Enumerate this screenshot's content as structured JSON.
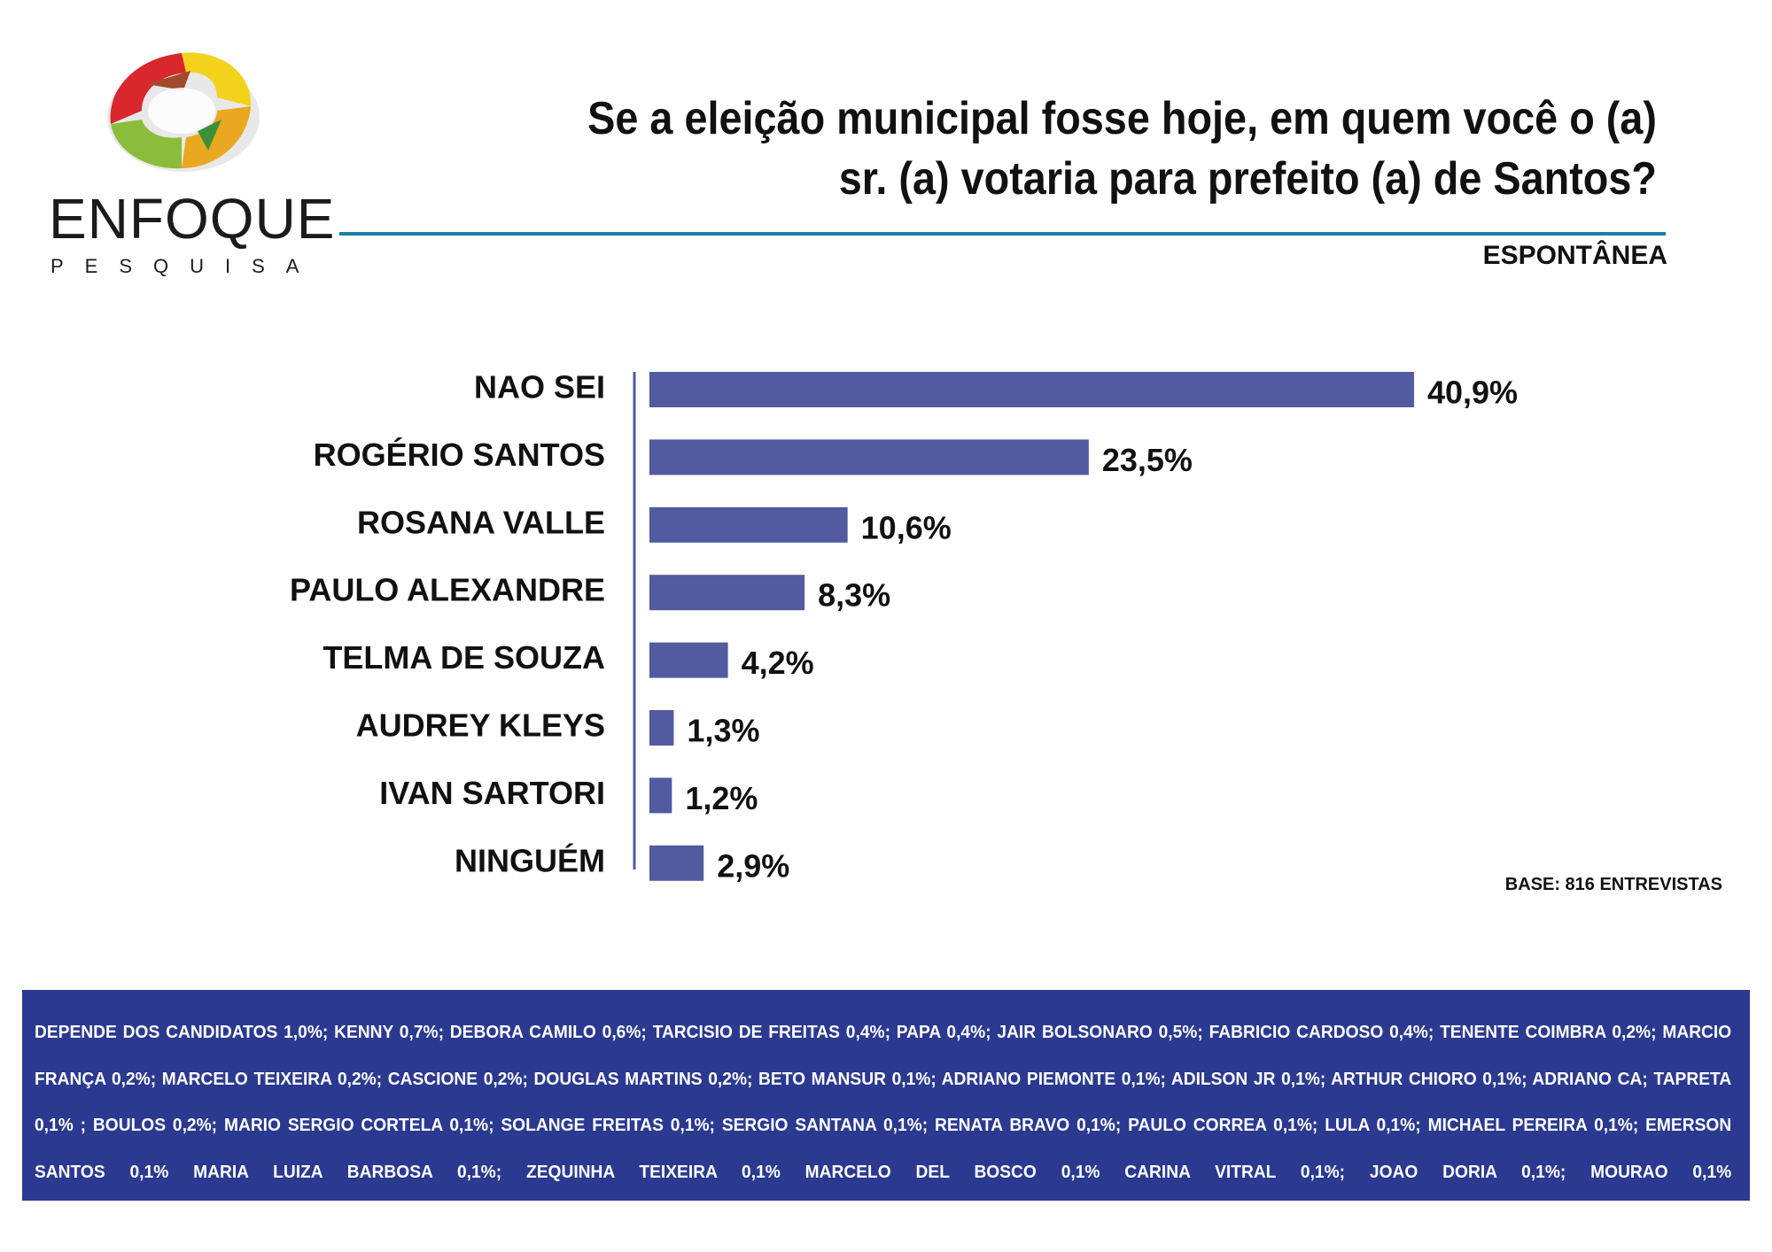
{
  "logo": {
    "name": "ENFOQUE",
    "subtitle": "PESQUISA"
  },
  "title": "Se a eleição municipal fosse hoje, em quem você o (a) sr. (a) votaria para prefeito (a) de Santos?",
  "subtitle": "ESPONTÂNEA",
  "base": "BASE: 816 ENTREVISTAS",
  "colors": {
    "bar": "#525aa0",
    "rule": "#1f7ea8",
    "footer_bg": "#2b3990"
  },
  "chart_data": {
    "type": "bar",
    "orientation": "horizontal",
    "categories": [
      "NAO SEI",
      "ROGÉRIO SANTOS",
      "ROSANA VALLE",
      "PAULO ALEXANDRE",
      "TELMA DE SOUZA",
      "AUDREY KLEYS",
      "IVAN SARTORI",
      "NINGUÉM"
    ],
    "values": [
      40.9,
      23.5,
      10.6,
      8.3,
      4.2,
      1.3,
      1.2,
      2.9
    ],
    "value_labels": [
      "40,9%",
      "23,5%",
      "10,6%",
      "8,3%",
      "4,2%",
      "1,3%",
      "1,2%",
      "2,9%"
    ],
    "title": "Se a eleição municipal fosse hoje, em quem você o (a) sr. (a) votaria para prefeito (a) de Santos?",
    "xlabel": "",
    "ylabel": "",
    "grid": false
  },
  "footer": {
    "text": "DEPENDE DOS CANDIDATOS 1,0%; KENNY 0,7%; DEBORA CAMILO 0,6%; TARCISIO DE FREITAS 0,4%; PAPA 0,4%; JAIR BOLSONARO 0,5%; FABRICIO CARDOSO 0,4%; TENENTE COIMBRA 0,2%; MARCIO FRANÇA 0,2%; MARCELO TEIXEIRA 0,2%; CASCIONE 0,2%; DOUGLAS MARTINS 0,2%; BETO MANSUR 0,1%; ADRIANO PIEMONTE 0,1%; ADILSON JR 0,1%; ARTHUR CHIORO 0,1%; ADRIANO CA; TAPRETA 0,1% ; BOULOS 0,2%; MARIO SERGIO CORTELA 0,1%; SOLANGE FREITAS 0,1%; SERGIO SANTANA 0,1%; RENATA BRAVO 0,1%; PAULO CORREA 0,1%; LULA 0,1%; MICHAEL PEREIRA 0,1%; EMERSON SANTOS 0,1% MARIA LUIZA BARBOSA 0,1%; ZEQUINHA TEIXEIRA 0,1% MARCELO DEL BOSCO 0,1% CARINA VITRAL 0,1%; JOAO DORIA 0,1%; MOURAO 0,1%"
  }
}
